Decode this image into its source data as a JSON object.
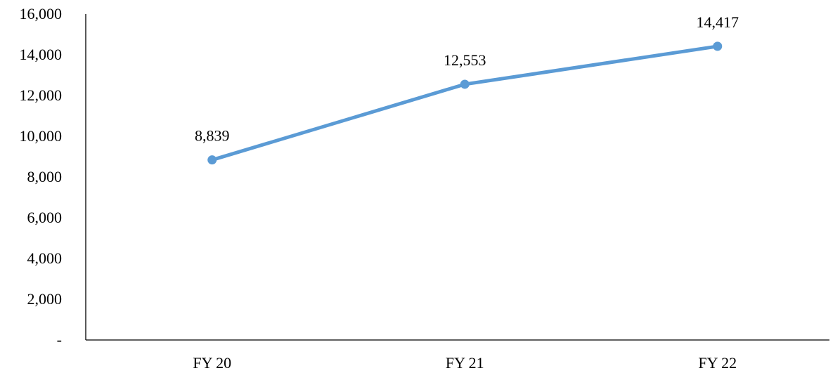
{
  "chart_data": {
    "type": "line",
    "categories": [
      "FY 20",
      "FY 21",
      "FY 22"
    ],
    "series": [
      {
        "values": [
          8839,
          12553,
          14417
        ],
        "data_labels": [
          "8,839",
          "12,553",
          "14,417"
        ],
        "color": "#5B9BD5"
      }
    ],
    "ylim": [
      0,
      16000
    ],
    "y_ticks": [
      0,
      2000,
      4000,
      6000,
      8000,
      10000,
      12000,
      14000,
      16000
    ],
    "y_tick_labels": [
      "-",
      "2,000",
      "4,000",
      "6,000",
      "8,000",
      "10,000",
      "12,000",
      "14,000",
      "16,000"
    ],
    "xlabel": "",
    "ylabel": "",
    "title": "",
    "grid": false,
    "legend": "none",
    "axis_color": "#000000"
  }
}
